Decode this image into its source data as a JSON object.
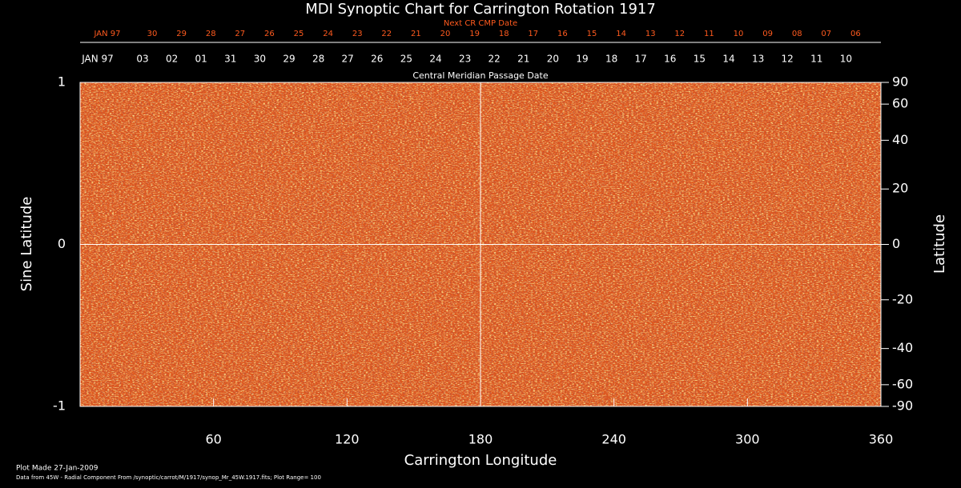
{
  "chart_data": {
    "type": "synoptic-map",
    "title": "MDI Synoptic Chart for Carrington Rotation 1917",
    "xlabel": "Carrington Longitude",
    "ylabel": "Sine Latitude",
    "y2label": "Latitude",
    "xlim": [
      0,
      360
    ],
    "xticks": [
      60,
      120,
      180,
      240,
      300,
      360
    ],
    "ylim": [
      -1,
      1
    ],
    "yticks": [
      -1,
      0,
      1
    ],
    "y2lim": [
      -90,
      90
    ],
    "y2ticks": [
      90,
      60,
      40,
      20,
      0,
      -20,
      -40,
      -60,
      -90
    ],
    "y2scale": "sine",
    "reference_lines": {
      "x": 180,
      "y": 0
    },
    "map_color": "#e0561c",
    "next_cr_label": "Next CR CMP Date",
    "next_cr_dates": [
      "JAN 97",
      "30",
      "29",
      "28",
      "27",
      "26",
      "25",
      "24",
      "23",
      "22",
      "21",
      "20",
      "19",
      "18",
      "17",
      "16",
      "15",
      "14",
      "13",
      "12",
      "11",
      "10",
      "09",
      "08",
      "07",
      "06"
    ],
    "cmp_label": "Central Meridian Passage Date",
    "cmp_dates": [
      "JAN 97",
      "03",
      "02",
      "01",
      "31",
      "30",
      "29",
      "28",
      "27",
      "26",
      "25",
      "24",
      "23",
      "22",
      "21",
      "20",
      "19",
      "18",
      "17",
      "16",
      "15",
      "14",
      "13",
      "12",
      "11",
      "10"
    ],
    "footer": [
      "Plot Made 27-Jan-2009",
      "Data from 45W - Radial Component From /synoptic/carrot/M/1917/synop_Mr_45W.1917.fits; Plot Range= 100"
    ]
  }
}
